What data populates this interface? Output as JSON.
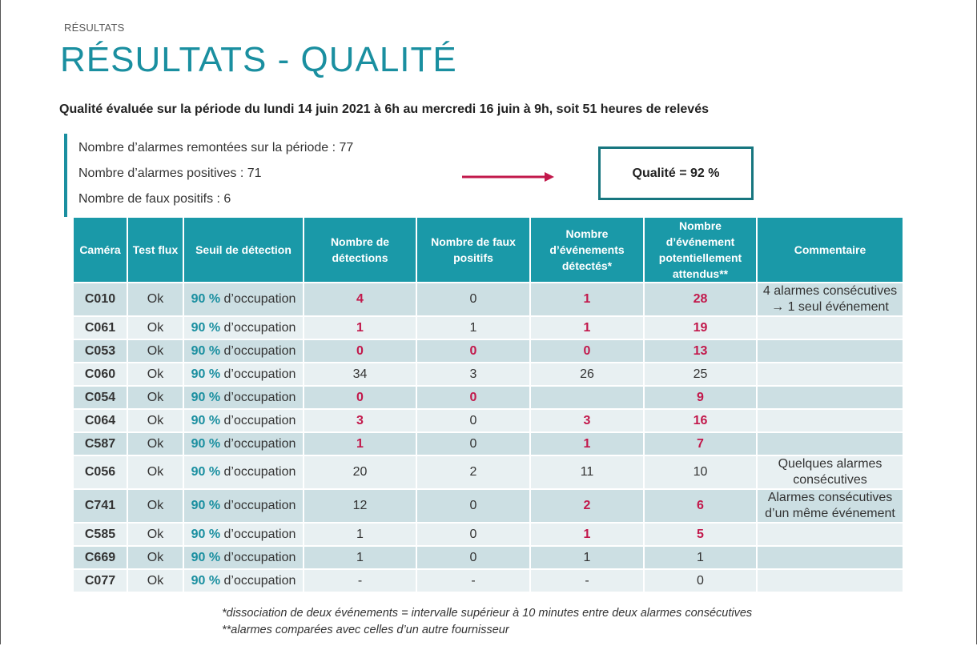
{
  "section_label": "RÉSULTATS",
  "title": "RÉSULTATS - QUALITÉ",
  "subtitle": "Qualité évaluée sur la période du lundi 14 juin 2021 à 6h au mercredi 16 juin à 9h, soit 51 heures de relevés",
  "stats": [
    "Nombre d’alarmes remontées sur la période : 77",
    "Nombre d’alarmes positives : 71",
    "Nombre de faux positifs : 6"
  ],
  "quality_label": "Qualité = 92 %",
  "colors": {
    "accent": "#1a8fa0",
    "highlight": "#c2184b",
    "header_bg": "#1a99a8",
    "row_odd": "#ccdfe3",
    "row_even": "#e8f0f2"
  },
  "table": {
    "headers": [
      "Caméra",
      "Test flux",
      "Seuil de détection",
      "Nombre de détections",
      "Nombre de faux positifs",
      "Nombre d’événements détectés*",
      "Nombre d’événement potentiellement attendus**",
      "Commentaire"
    ],
    "threshold_pct": "90 %",
    "threshold_suffix": " d’occupation",
    "rows": [
      {
        "cam": "C010",
        "flux": "Ok",
        "det": "4",
        "fp": "0",
        "ev": "1",
        "att": "28",
        "comment": "4 alarmes consécutives → 1 seul événement",
        "hl": [
          1,
          0,
          1,
          1
        ]
      },
      {
        "cam": "C061",
        "flux": "Ok",
        "det": "1",
        "fp": "1",
        "ev": "1",
        "att": "19",
        "comment": "",
        "hl": [
          1,
          0,
          1,
          1
        ]
      },
      {
        "cam": "C053",
        "flux": "Ok",
        "det": "0",
        "fp": "0",
        "ev": "0",
        "att": "13",
        "comment": "",
        "hl": [
          1,
          1,
          1,
          1
        ]
      },
      {
        "cam": "C060",
        "flux": "Ok",
        "det": "34",
        "fp": "3",
        "ev": "26",
        "att": "25",
        "comment": "",
        "hl": [
          0,
          0,
          0,
          0
        ]
      },
      {
        "cam": "C054",
        "flux": "Ok",
        "det": "0",
        "fp": "0",
        "ev": "",
        "att": "9",
        "comment": "",
        "hl": [
          1,
          1,
          0,
          1
        ]
      },
      {
        "cam": "C064",
        "flux": "Ok",
        "det": "3",
        "fp": "0",
        "ev": "3",
        "att": "16",
        "comment": "",
        "hl": [
          1,
          0,
          1,
          1
        ]
      },
      {
        "cam": "C587",
        "flux": "Ok",
        "det": "1",
        "fp": "0",
        "ev": "1",
        "att": "7",
        "comment": "",
        "hl": [
          1,
          0,
          1,
          1
        ]
      },
      {
        "cam": "C056",
        "flux": "Ok",
        "det": "20",
        "fp": "2",
        "ev": "11",
        "att": "10",
        "comment": "Quelques alarmes consécutives",
        "hl": [
          0,
          0,
          0,
          0
        ]
      },
      {
        "cam": "C741",
        "flux": "Ok",
        "det": "12",
        "fp": "0",
        "ev": "2",
        "att": "6",
        "comment": "Alarmes consécutives d’un même événement",
        "hl": [
          0,
          0,
          1,
          1
        ]
      },
      {
        "cam": "C585",
        "flux": "Ok",
        "det": "1",
        "fp": "0",
        "ev": "1",
        "att": "5",
        "comment": "",
        "hl": [
          0,
          0,
          1,
          1
        ]
      },
      {
        "cam": "C669",
        "flux": "Ok",
        "det": "1",
        "fp": "0",
        "ev": "1",
        "att": "1",
        "comment": "",
        "hl": [
          0,
          0,
          0,
          0
        ]
      },
      {
        "cam": "C077",
        "flux": "Ok",
        "det": "-",
        "fp": "-",
        "ev": "-",
        "att": "0",
        "comment": "",
        "hl": [
          0,
          0,
          0,
          0
        ]
      }
    ]
  },
  "footnotes": [
    "*dissociation de deux événements = intervalle supérieur à 10 minutes entre deux alarmes consécutives",
    "**alarmes comparées avec celles d’un autre fournisseur"
  ]
}
